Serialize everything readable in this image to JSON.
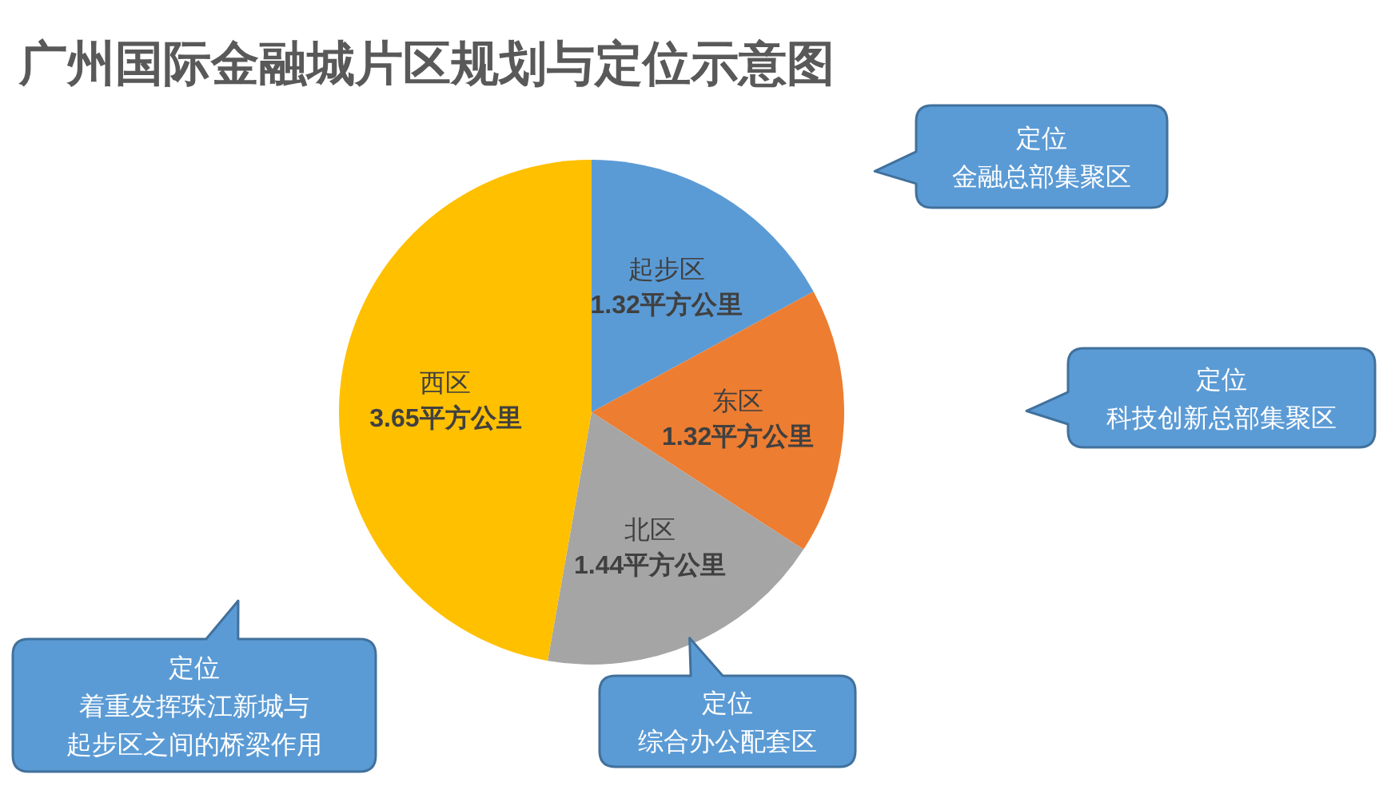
{
  "chart_data": {
    "type": "pie",
    "title": "广州国际金融城片区规划与定位示意图",
    "categories": [
      "起步区",
      "东区",
      "北区",
      "西区"
    ],
    "values": [
      1.32,
      1.32,
      1.44,
      3.65
    ],
    "colors": [
      "#5b9bd5",
      "#ed7d31",
      "#a5a5a5",
      "#ffc000"
    ],
    "value_labels": [
      "1.32平方公里",
      "1.32平方公里",
      "1.44平方公里",
      "3.65平方公里"
    ],
    "annotations": [
      "定位",
      "金融总部集聚区",
      "定位",
      "科技创新总部集聚区",
      "定位",
      "综合办公配套区",
      "定位",
      "着重发挥珠江新城与起步区之间的桥梁作用"
    ]
  }
}
